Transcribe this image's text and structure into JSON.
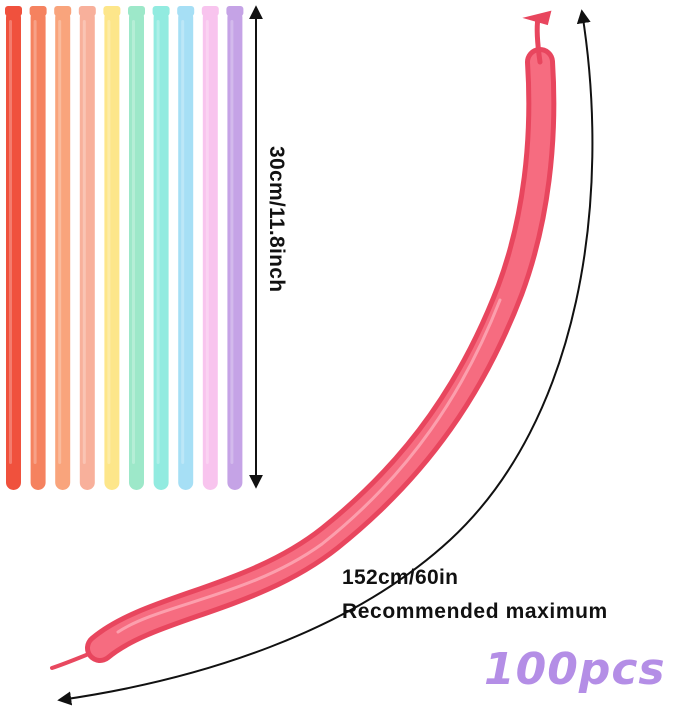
{
  "product": {
    "short_length_label": "30cm/11.8inch",
    "inflated_length_label": "152cm/60in",
    "inflated_note": "Recommended maximum",
    "quantity_label": "100pcs"
  },
  "colors": {
    "balloons": [
      "#f0513d",
      "#f5825f",
      "#f9a47c",
      "#f8b09b",
      "#fde68a",
      "#9de8c9",
      "#92ebe0",
      "#a6dff5",
      "#f8c4ee",
      "#c5a3e6"
    ],
    "inflated_balloon": "#f1566a",
    "quantity_text": "#b48ee6"
  }
}
